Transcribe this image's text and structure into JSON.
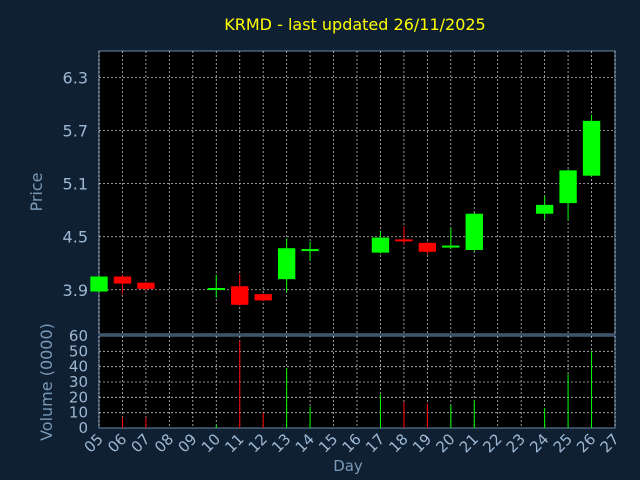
{
  "chart_data": {
    "type": "candlestick",
    "title": "KRMD - last updated 26/11/2025",
    "xlabel": "Day",
    "ylabel": "Price",
    "volume_label": "Volume (0000)",
    "x_ticks": [
      "05",
      "06",
      "07",
      "08",
      "09",
      "10",
      "11",
      "12",
      "13",
      "14",
      "15",
      "16",
      "17",
      "18",
      "19",
      "20",
      "21",
      "22",
      "23",
      "24",
      "25",
      "26",
      "27"
    ],
    "x_range": [
      5,
      27
    ],
    "price_ticks": [
      3.9,
      4.5,
      5.1,
      5.7,
      6.3
    ],
    "price_tick_labels": [
      "3.9",
      "4.5",
      "5.1",
      "5.7",
      "6.3"
    ],
    "price_range": [
      3.4,
      6.6
    ],
    "volume_ticks": [
      0,
      10,
      20,
      30,
      40,
      50,
      60
    ],
    "volume_range": [
      0,
      60
    ],
    "grid": true,
    "colors": {
      "up": "#00ff00",
      "down": "#ff0000",
      "grid": "#ffffff",
      "title": "#ffff00"
    },
    "candles": [
      {
        "day": 5,
        "open": 3.88,
        "close": 4.05,
        "high": 4.06,
        "low": 3.87,
        "volume": 0
      },
      {
        "day": 6,
        "open": 4.05,
        "close": 3.97,
        "high": 4.07,
        "low": 3.85,
        "volume": 7
      },
      {
        "day": 7,
        "open": 3.98,
        "close": 3.91,
        "high": 3.99,
        "low": 3.89,
        "volume": 7
      },
      {
        "day": 10,
        "open": 3.91,
        "close": 3.92,
        "high": 4.07,
        "low": 3.81,
        "volume": 2
      },
      {
        "day": 11,
        "open": 3.94,
        "close": 3.73,
        "high": 4.08,
        "low": 3.72,
        "volume": 57
      },
      {
        "day": 12,
        "open": 3.85,
        "close": 3.78,
        "high": 3.86,
        "low": 3.77,
        "volume": 10
      },
      {
        "day": 13,
        "open": 4.02,
        "close": 4.37,
        "high": 4.48,
        "low": 3.87,
        "volume": 39
      },
      {
        "day": 14,
        "open": 4.34,
        "close": 4.36,
        "high": 4.44,
        "low": 4.23,
        "volume": 14
      },
      {
        "day": 17,
        "open": 4.32,
        "close": 4.49,
        "high": 4.57,
        "low": 4.31,
        "volume": 22
      },
      {
        "day": 18,
        "open": 4.47,
        "close": 4.46,
        "high": 4.62,
        "low": 4.41,
        "volume": 17
      },
      {
        "day": 19,
        "open": 4.43,
        "close": 4.33,
        "high": 4.44,
        "low": 4.3,
        "volume": 16
      },
      {
        "day": 20,
        "open": 4.38,
        "close": 4.4,
        "high": 4.6,
        "low": 4.36,
        "volume": 15
      },
      {
        "day": 21,
        "open": 4.35,
        "close": 4.76,
        "high": 4.77,
        "low": 4.33,
        "volume": 18
      },
      {
        "day": 24,
        "open": 4.76,
        "close": 4.86,
        "high": 4.96,
        "low": 4.7,
        "volume": 13
      },
      {
        "day": 25,
        "open": 4.88,
        "close": 5.25,
        "high": 5.26,
        "low": 4.69,
        "volume": 35
      },
      {
        "day": 26,
        "open": 5.19,
        "close": 5.81,
        "high": 5.88,
        "low": 5.18,
        "volume": 50
      }
    ]
  }
}
